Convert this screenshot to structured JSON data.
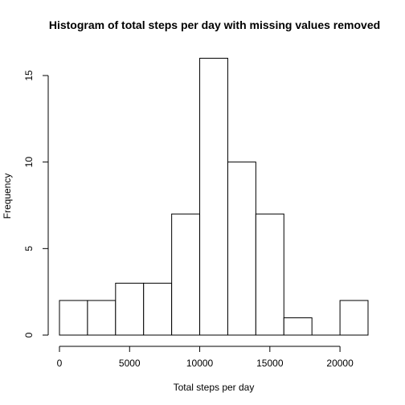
{
  "chart_data": {
    "type": "bar",
    "title": "Histogram of total steps per day with missing values removed",
    "xlabel": "Total steps per day",
    "ylabel": "Frequency",
    "bins": [
      {
        "start": 0,
        "end": 2000,
        "count": 2
      },
      {
        "start": 2000,
        "end": 4000,
        "count": 2
      },
      {
        "start": 4000,
        "end": 6000,
        "count": 3
      },
      {
        "start": 6000,
        "end": 8000,
        "count": 3
      },
      {
        "start": 8000,
        "end": 10000,
        "count": 7
      },
      {
        "start": 10000,
        "end": 12000,
        "count": 16
      },
      {
        "start": 12000,
        "end": 14000,
        "count": 10
      },
      {
        "start": 14000,
        "end": 16000,
        "count": 7
      },
      {
        "start": 16000,
        "end": 18000,
        "count": 1
      },
      {
        "start": 18000,
        "end": 20000,
        "count": 0
      },
      {
        "start": 20000,
        "end": 22000,
        "count": 2
      }
    ],
    "xlim": [
      0,
      22000
    ],
    "ylim": [
      0,
      16
    ],
    "xticks": [
      0,
      5000,
      10000,
      15000,
      20000
    ],
    "yticks": [
      0,
      5,
      10,
      15
    ],
    "grid": false
  }
}
